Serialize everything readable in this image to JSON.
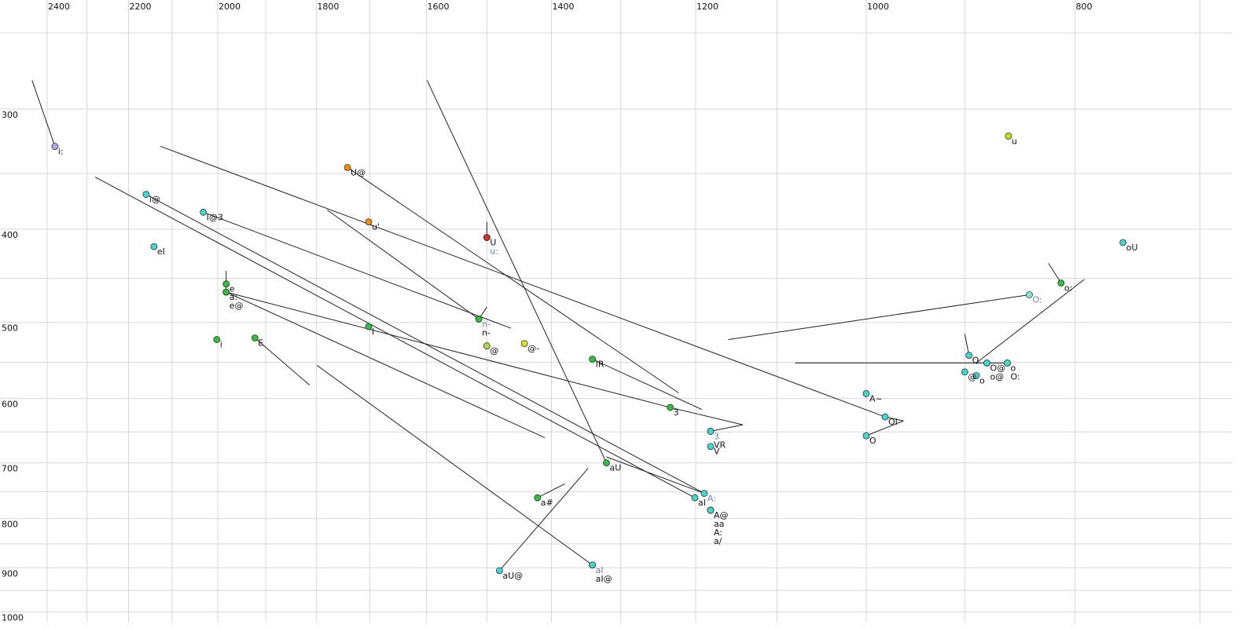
{
  "chart_data": {
    "type": "scatter",
    "x_scale": "log",
    "y_scale": "log",
    "grid": true,
    "xlim": [
      2524,
      676
    ],
    "ylim": [
      231,
      1026
    ],
    "xticks": [
      2400,
      2200,
      2000,
      1800,
      1600,
      1400,
      1200,
      1000,
      800
    ],
    "xgrid_minor": [
      2300,
      2100,
      1900,
      1700,
      1500,
      1300,
      1100,
      900,
      700
    ],
    "yticks": [
      300,
      400,
      500,
      600,
      700,
      800,
      900,
      1000
    ],
    "ygrid_minor": [
      250,
      350,
      450,
      550,
      650,
      750,
      850,
      950
    ],
    "line_color": "#222222",
    "points": [
      {
        "label": "i:",
        "x": 2380,
        "y": 328,
        "color": "#b0a8e0"
      },
      {
        "label": "u",
        "x": 859,
        "y": 320,
        "color": "#c8e010"
      },
      {
        "label": "U@",
        "x": 1741,
        "y": 345,
        "color": "#f09010"
      },
      {
        "label": "u'",
        "x": 1702,
        "y": 393,
        "color": "#f09010"
      },
      {
        "label": "U",
        "x": 1500,
        "y": 408,
        "color": "#d03020"
      },
      {
        "label": "u:",
        "x": 1500,
        "y": 408,
        "color": "#d03020",
        "label_color": "#7080b0"
      },
      {
        "label": "i@",
        "x": 2159,
        "y": 368,
        "color": "#40d8d0"
      },
      {
        "label": "I@3",
        "x": 2031,
        "y": 384,
        "color": "#40d8d0"
      },
      {
        "label": "eI",
        "x": 2141,
        "y": 417,
        "color": "#40d8d0"
      },
      {
        "label": "oU",
        "x": 760,
        "y": 413,
        "color": "#40d8d0"
      },
      {
        "label": "o:",
        "x": 812,
        "y": 455,
        "color": "#30c040"
      },
      {
        "label": "O:",
        "x": 840,
        "y": 468,
        "color": "#80e8d8",
        "label_color": "#7080b0"
      },
      {
        "label": "e",
        "x": 1982,
        "y": 456,
        "color": "#30c040"
      },
      {
        "label": "a:",
        "x": 1982,
        "y": 465,
        "color": "#30c040"
      },
      {
        "label": "e@",
        "x": 1982,
        "y": 465,
        "color": "#30c040"
      },
      {
        "label": "I",
        "x": 1702,
        "y": 505,
        "color": "#30c040"
      },
      {
        "label": "n-",
        "x": 1513,
        "y": 496,
        "color": "#30c040",
        "label_color": "#7080b0"
      },
      {
        "label": "n-",
        "x": 1513,
        "y": 496,
        "color": "#30c040"
      },
      {
        "label": "@",
        "x": 1500,
        "y": 529,
        "color": "#a8e040"
      },
      {
        "label": "@-",
        "x": 1441,
        "y": 526,
        "color": "#d8e020"
      },
      {
        "label": "i",
        "x": 2002,
        "y": 521,
        "color": "#30c040"
      },
      {
        "label": "E",
        "x": 1922,
        "y": 519,
        "color": "#30c040"
      },
      {
        "label": "IR",
        "x": 1340,
        "y": 546,
        "color": "#30c040"
      },
      {
        "label": "3",
        "x": 1233,
        "y": 613,
        "color": "#30c040"
      },
      {
        "label": "A~",
        "x": 1000,
        "y": 593,
        "color": "#40d8d0"
      },
      {
        "label": "OI",
        "x": 980,
        "y": 627,
        "color": "#40d8d0"
      },
      {
        "label": "O",
        "x": 1000,
        "y": 656,
        "color": "#40d8d0"
      },
      {
        "label": "3",
        "x": 1181,
        "y": 649,
        "color": "#40d8d0",
        "label_color": "#7080b0"
      },
      {
        "label": "VR",
        "x": 1181,
        "y": 649,
        "color": "#40d8d0"
      },
      {
        "label": "V",
        "x": 1181,
        "y": 673,
        "color": "#40d8d0"
      },
      {
        "label": "aU",
        "x": 1320,
        "y": 700,
        "color": "#30c040"
      },
      {
        "label": "a#",
        "x": 1421,
        "y": 761,
        "color": "#30c040"
      },
      {
        "label": "aI",
        "x": 1201,
        "y": 761,
        "color": "#40d8d0"
      },
      {
        "label": "A:",
        "x": 1189,
        "y": 753,
        "color": "#40d8d0",
        "label_color": "#7080b0"
      },
      {
        "label": "A@",
        "x": 1181,
        "y": 784,
        "color": "#40d8d0"
      },
      {
        "label": "aa",
        "x": 1181,
        "y": 784,
        "color": "#40d8d0"
      },
      {
        "label": "A:",
        "x": 1181,
        "y": 784,
        "color": "#40d8d0"
      },
      {
        "label": "a/",
        "x": 1181,
        "y": 784,
        "color": "#40d8d0"
      },
      {
        "label": "aU@",
        "x": 1480,
        "y": 906,
        "color": "#40d8d0"
      },
      {
        "label": "aI",
        "x": 1340,
        "y": 894,
        "color": "#40d8d0",
        "label_color": "#7080b0"
      },
      {
        "label": "aI@",
        "x": 1340,
        "y": 894,
        "color": "#40d8d0"
      },
      {
        "label": "Q",
        "x": 896,
        "y": 541,
        "color": "#40d8d0"
      },
      {
        "label": "@",
        "x": 900,
        "y": 563,
        "color": "#40d8d0"
      },
      {
        "label": "o",
        "x": 889,
        "y": 568,
        "color": "#40d8d0"
      },
      {
        "label": "O@",
        "x": 879,
        "y": 551,
        "color": "#40d8d0"
      },
      {
        "label": "o@",
        "x": 879,
        "y": 551,
        "color": "#40d8d0"
      },
      {
        "label": "o",
        "x": 860,
        "y": 551,
        "color": "#40d8d0"
      },
      {
        "label": "O:",
        "x": 860,
        "y": 551,
        "color": "#40d8d0"
      }
    ],
    "trajectories": [
      {
        "x": [
          2439,
          2380
        ],
        "y": [
          280,
          328
        ]
      },
      {
        "x": [
          2126,
          980,
          961
        ],
        "y": [
          328,
          627,
          633
        ]
      },
      {
        "x": [
          2280,
          1201
        ],
        "y": [
          353,
          761
        ]
      },
      {
        "x": [
          2159,
          1189
        ],
        "y": [
          368,
          753
        ]
      },
      {
        "x": [
          2031,
          1462
        ],
        "y": [
          384,
          507
        ]
      },
      {
        "x": [
          1982,
          1982
        ],
        "y": [
          442,
          465
        ]
      },
      {
        "x": [
          1982,
          1410
        ],
        "y": [
          465,
          659
        ]
      },
      {
        "x": [
          1982,
          1233,
          1141,
          1181
        ],
        "y": [
          465,
          613,
          639,
          649
        ]
      },
      {
        "x": [
          1922,
          1813
        ],
        "y": [
          519,
          581
        ]
      },
      {
        "x": [
          1799,
          1340
        ],
        "y": [
          554,
          894
        ]
      },
      {
        "x": [
          1779,
          1513,
          1500
        ],
        "y": [
          382,
          496,
          482
        ]
      },
      {
        "x": [
          1741,
          1222
        ],
        "y": [
          345,
          592
        ]
      },
      {
        "x": [
          1599,
          1320
        ],
        "y": [
          280,
          700
        ]
      },
      {
        "x": [
          1320,
          1189
        ],
        "y": [
          690,
          753
        ]
      },
      {
        "x": [
          1340,
          1192
        ],
        "y": [
          546,
          616
        ]
      },
      {
        "x": [
          1480,
          1346
        ],
        "y": [
          906,
          709
        ]
      },
      {
        "x": [
          1421,
          1380
        ],
        "y": [
          761,
          736
        ]
      },
      {
        "x": [
          1500,
          1500
        ],
        "y": [
          408,
          393
        ]
      },
      {
        "x": [
          1159,
          840
        ],
        "y": [
          521,
          468
        ]
      },
      {
        "x": [
          1079,
          860
        ],
        "y": [
          551,
          551
        ]
      },
      {
        "x": [
          823,
          812
        ],
        "y": [
          434,
          455
        ]
      },
      {
        "x": [
          889,
          792
        ],
        "y": [
          551,
          451
        ]
      },
      {
        "x": [
          900,
          896
        ],
        "y": [
          514,
          541
        ]
      },
      {
        "x": [
          1000,
          961
        ],
        "y": [
          656,
          633
        ]
      }
    ]
  }
}
